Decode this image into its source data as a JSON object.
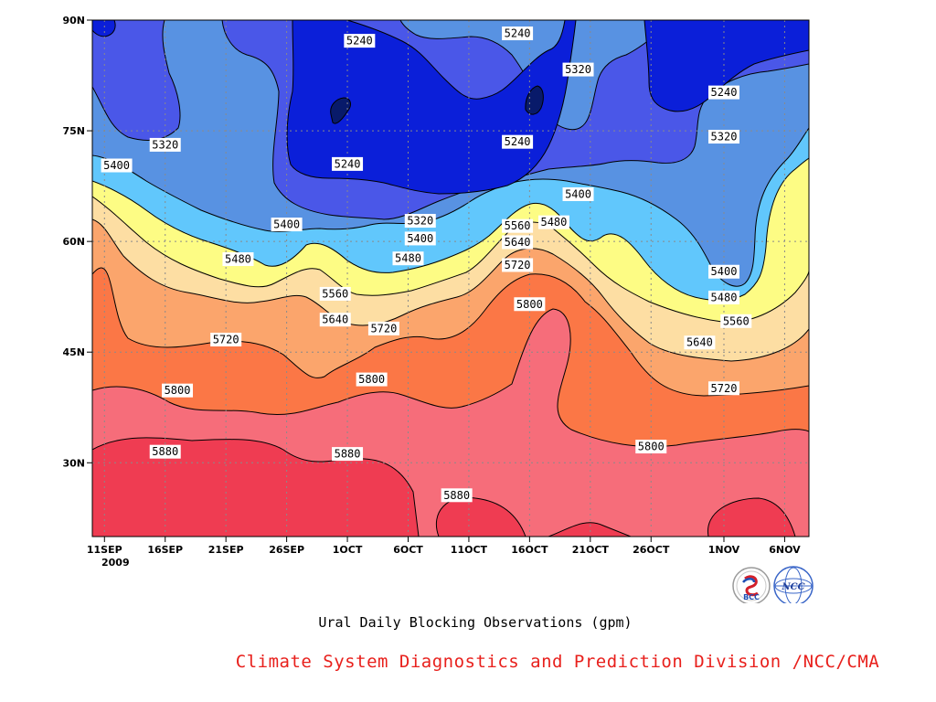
{
  "chart_data": {
    "type": "heatmap",
    "subtype": "filled-contour",
    "title": "Ural Daily Blocking Observations (gpm)",
    "credit": "Climate System Diagnostics and Prediction Division /NCC/CMA",
    "logos": [
      "BCC",
      "NCC"
    ],
    "x_axis": {
      "ticks": [
        "11SEP",
        "16SEP",
        "21SEP",
        "26SEP",
        "1OCT",
        "6OCT",
        "11OCT",
        "16OCT",
        "21OCT",
        "26OCT",
        "1NOV",
        "6NOV"
      ],
      "year_label": "2009",
      "range": [
        "2009-09-10",
        "2009-11-08"
      ]
    },
    "y_axis": {
      "ticks": [
        "30N",
        "45N",
        "60N",
        "75N",
        "90N"
      ],
      "range": [
        20,
        90
      ]
    },
    "contour_levels": [
      5240,
      5320,
      5400,
      5480,
      5560,
      5640,
      5720,
      5800,
      5880
    ],
    "contour_labels": [
      {
        "text": "5240",
        "x": "2009-10-02",
        "y": 87.2
      },
      {
        "text": "5240",
        "x": "2009-10-15",
        "y": 88.2
      },
      {
        "text": "5320",
        "x": "2009-10-20",
        "y": 83.3
      },
      {
        "text": "5240",
        "x": "2009-11-01",
        "y": 80.2
      },
      {
        "text": "5320",
        "x": "2009-09-16",
        "y": 73.1
      },
      {
        "text": "5320",
        "x": "2009-11-01",
        "y": 74.2
      },
      {
        "text": "5400",
        "x": "2009-09-12",
        "y": 70.3
      },
      {
        "text": "5240",
        "x": "2009-10-01",
        "y": 70.5
      },
      {
        "text": "5240",
        "x": "2009-10-15",
        "y": 73.5
      },
      {
        "text": "5400",
        "x": "2009-10-20",
        "y": 66.4
      },
      {
        "text": "5480",
        "x": "2009-10-18",
        "y": 62.6
      },
      {
        "text": "5400",
        "x": "2009-09-26",
        "y": 62.3
      },
      {
        "text": "5320",
        "x": "2009-10-07",
        "y": 62.8
      },
      {
        "text": "5560",
        "x": "2009-10-15",
        "y": 62.1
      },
      {
        "text": "5400",
        "x": "2009-10-07",
        "y": 60.4
      },
      {
        "text": "5640",
        "x": "2009-10-15",
        "y": 59.9
      },
      {
        "text": "5480",
        "x": "2009-09-22",
        "y": 57.6
      },
      {
        "text": "5480",
        "x": "2009-10-06",
        "y": 57.7
      },
      {
        "text": "5720",
        "x": "2009-10-15",
        "y": 56.8
      },
      {
        "text": "5400",
        "x": "2009-11-01",
        "y": 55.9
      },
      {
        "text": "5560",
        "x": "2009-09-30",
        "y": 52.9
      },
      {
        "text": "5480",
        "x": "2009-11-01",
        "y": 52.4
      },
      {
        "text": "5800",
        "x": "2009-10-16",
        "y": 51.5
      },
      {
        "text": "5640",
        "x": "2009-09-30",
        "y": 49.4
      },
      {
        "text": "5560",
        "x": "2009-11-02",
        "y": 49.2
      },
      {
        "text": "5720",
        "x": "2009-10-04",
        "y": 48.2
      },
      {
        "text": "5720",
        "x": "2009-09-21",
        "y": 46.7
      },
      {
        "text": "5640",
        "x": "2009-10-30",
        "y": 46.3
      },
      {
        "text": "5800",
        "x": "2009-10-03",
        "y": 41.3
      },
      {
        "text": "5720",
        "x": "2009-11-01",
        "y": 40.1
      },
      {
        "text": "5800",
        "x": "2009-09-17",
        "y": 39.8
      },
      {
        "text": "5800",
        "x": "2009-10-26",
        "y": 32.2
      },
      {
        "text": "5880",
        "x": "2009-09-16",
        "y": 31.5
      },
      {
        "text": "5880",
        "x": "2009-10-01",
        "y": 31.2
      },
      {
        "text": "5880",
        "x": "2009-10-10",
        "y": 25.6
      }
    ],
    "colors": {
      "below_5240": "#0b1fd9",
      "5240_5320": "#4a57e8",
      "5320_5400": "#5892e2",
      "5400_5480": "#61c7fc",
      "5480_5560": "#fdfc84",
      "5560_5640": "#fddea3",
      "5640_5720": "#fba56c",
      "5720_5800": "#fb7746",
      "5800_5880": "#f66d7a",
      "above_5880": "#ef3c52",
      "darkest_core": "#081a6a"
    },
    "grid": true
  }
}
